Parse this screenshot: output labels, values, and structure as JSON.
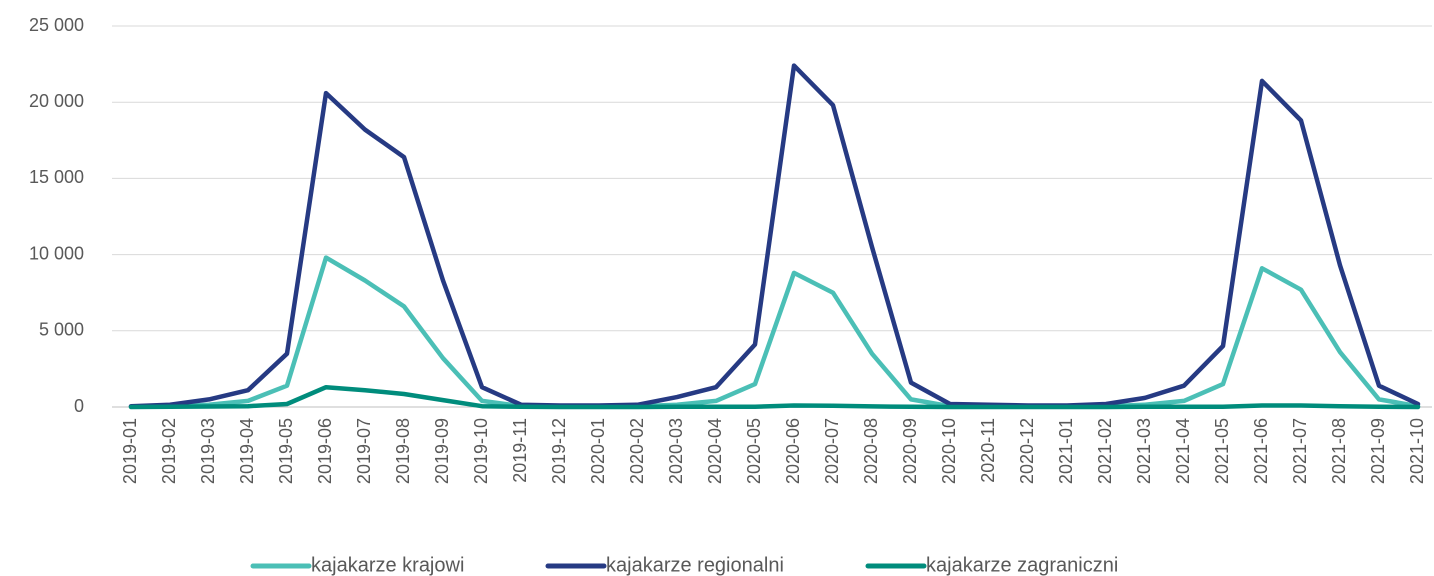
{
  "chart_data": {
    "type": "line",
    "categories": [
      "2019-01",
      "2019-02",
      "2019-03",
      "2019-04",
      "2019-05",
      "2019-06",
      "2019-07",
      "2019-08",
      "2019-09",
      "2019-10",
      "2019-11",
      "2019-12",
      "2020-01",
      "2020-02",
      "2020-03",
      "2020-04",
      "2020-05",
      "2020-06",
      "2020-07",
      "2020-08",
      "2020-09",
      "2020-10",
      "2020-11",
      "2020-12",
      "2021-01",
      "2021-02",
      "2021-03",
      "2021-04",
      "2021-05",
      "2021-06",
      "2021-07",
      "2021-08",
      "2021-09",
      "2021-10"
    ],
    "series": [
      {
        "name": "kajakarze krajowi",
        "color": "#4bbfb6",
        "values": [
          20,
          50,
          150,
          400,
          1400,
          9800,
          8300,
          6600,
          3200,
          400,
          50,
          30,
          30,
          50,
          150,
          400,
          1500,
          8800,
          7500,
          3500,
          500,
          50,
          30,
          30,
          30,
          50,
          150,
          400,
          1500,
          9100,
          7700,
          3600,
          500,
          50
        ]
      },
      {
        "name": "kajakarze regionalni",
        "color": "#263a83",
        "values": [
          50,
          150,
          500,
          1100,
          3500,
          20600,
          18200,
          16400,
          8300,
          1300,
          150,
          100,
          100,
          150,
          650,
          1300,
          4100,
          22400,
          19800,
          10500,
          1600,
          200,
          150,
          100,
          100,
          200,
          600,
          1400,
          4000,
          21400,
          18800,
          9300,
          1400,
          200
        ]
      },
      {
        "name": "kajakarze zagraniczni",
        "color": "#008c7c",
        "values": [
          0,
          10,
          30,
          50,
          200,
          1300,
          1100,
          850,
          450,
          50,
          10,
          0,
          0,
          0,
          10,
          20,
          20,
          100,
          80,
          40,
          10,
          0,
          0,
          0,
          0,
          0,
          10,
          20,
          20,
          100,
          100,
          50,
          10,
          0
        ]
      }
    ],
    "ylim": [
      0,
      25000
    ],
    "yticks": [
      0,
      {
        "value": 5000,
        "label": "5 000"
      },
      {
        "value": 10000,
        "label": "10 000"
      },
      {
        "value": 15000,
        "label": "15 000"
      },
      {
        "value": 20000,
        "label": "20 000"
      },
      {
        "value": 25000,
        "label": "25 000"
      }
    ],
    "grid": true,
    "legend": "bottom"
  }
}
